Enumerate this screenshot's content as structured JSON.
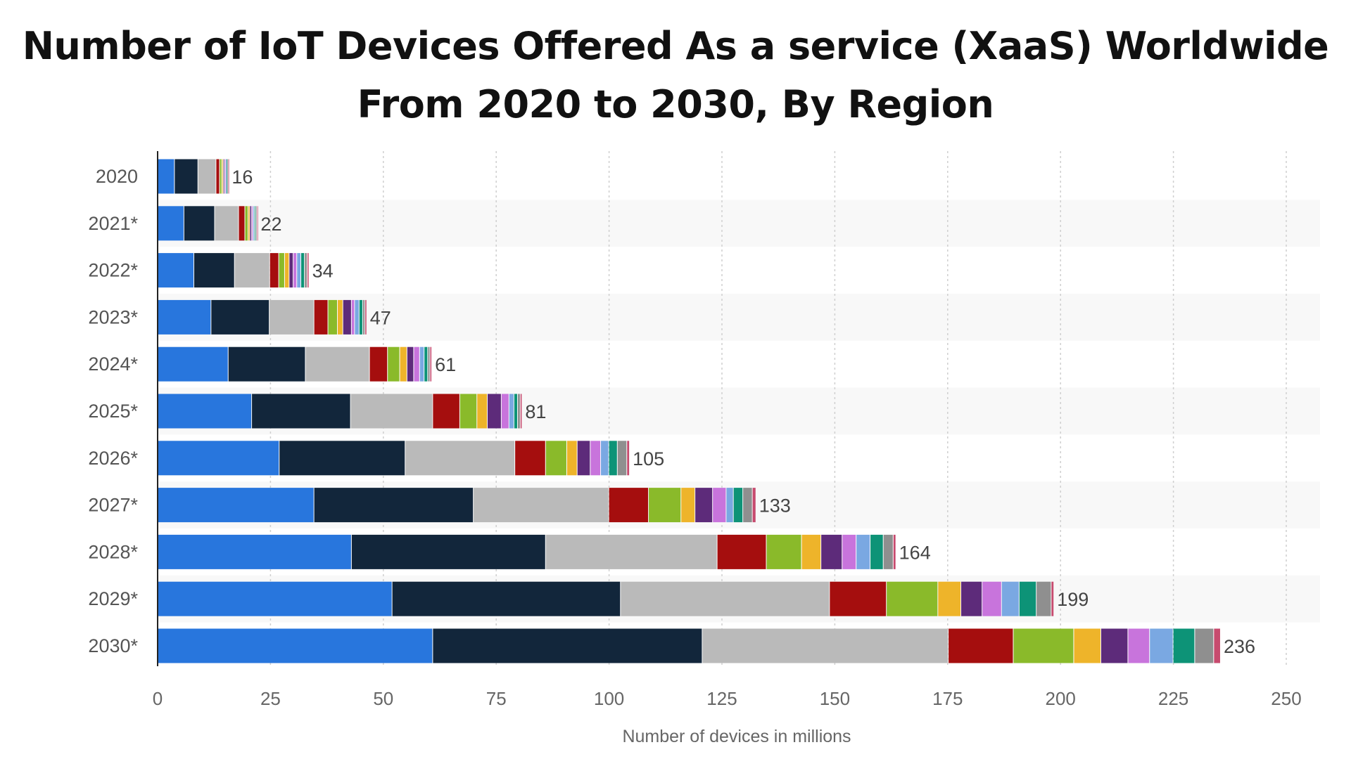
{
  "chart_data": {
    "type": "bar",
    "orientation": "horizontal",
    "stacked": true,
    "title": "Number of IoT Devices Offered As a service (XaaS) Worldwide From 2020 to 2030, By Region",
    "title_lines": [
      "Number of IoT Devices Offered As a service (XaaS) Worldwide",
      "From 2020 to 2030, By Region"
    ],
    "xlabel": "Number of devices in millions",
    "ylabel": "",
    "xlim": [
      0,
      250
    ],
    "xticks": [
      0,
      25,
      50,
      75,
      100,
      125,
      150,
      175,
      200,
      225,
      250
    ],
    "grid": true,
    "legend": "none",
    "categories": [
      "2020",
      "2021*",
      "2022*",
      "2023*",
      "2024*",
      "2025*",
      "2026*",
      "2027*",
      "2028*",
      "2029*",
      "2030*"
    ],
    "totals": [
      16,
      22,
      34,
      47,
      61,
      81,
      105,
      133,
      164,
      199,
      236
    ],
    "series": [
      {
        "color": "#2876dd",
        "values": [
          3.8,
          5.9,
          8.1,
          11.9,
          15.7,
          20.9,
          27,
          34.7,
          43,
          52,
          61
        ]
      },
      {
        "color": "#12263b",
        "values": [
          5.2,
          6.8,
          9,
          12.9,
          17.1,
          21.9,
          27.9,
          35.3,
          43,
          50.6,
          59.7
        ]
      },
      {
        "color": "#bababa",
        "values": [
          4,
          5.3,
          7.8,
          9.9,
          14.2,
          18.2,
          24.3,
          30,
          38,
          46.3,
          54.5
        ]
      },
      {
        "color": "#a50e0e",
        "values": [
          0.8,
          1.4,
          2,
          3.1,
          4,
          6,
          6.8,
          8.8,
          10.9,
          12.6,
          14.4
        ]
      },
      {
        "color": "#8aba2a",
        "values": [
          0.5,
          0.7,
          1.3,
          2.1,
          2.7,
          3.8,
          4.7,
          7.2,
          7.8,
          11.4,
          13.4
        ]
      },
      {
        "color": "#eeb42a",
        "values": [
          0.3,
          0.4,
          1,
          1.2,
          1.6,
          2.3,
          2.3,
          3.1,
          4.3,
          5.1,
          6
        ]
      },
      {
        "color": "#5d2b7a",
        "values": [
          0.3,
          0.4,
          0.9,
          1.9,
          1.5,
          3.1,
          2.9,
          3.9,
          4.7,
          4.7,
          6
        ]
      },
      {
        "color": "#c874dc",
        "values": [
          0.2,
          0.3,
          0.8,
          0.7,
          1.3,
          1.7,
          2.3,
          3,
          3.1,
          4.3,
          4.8
        ]
      },
      {
        "color": "#7aa8e2",
        "values": [
          0.2,
          0.3,
          0.9,
          1,
          1,
          1.1,
          1.8,
          1.6,
          3.1,
          3.9,
          5.2
        ]
      },
      {
        "color": "#0d9377",
        "values": [
          0.2,
          0.3,
          0.8,
          0.8,
          0.8,
          0.8,
          1.9,
          2.1,
          2.9,
          3.8,
          4.8
        ]
      },
      {
        "color": "#8f8f8f",
        "values": [
          0.2,
          0.3,
          0.6,
          0.5,
          0.5,
          0.6,
          2.1,
          2.1,
          2.2,
          3.3,
          4.2
        ]
      },
      {
        "color": "#c74a6e",
        "values": [
          0.1,
          0.1,
          0.4,
          0.4,
          0.4,
          0.4,
          0.6,
          0.8,
          0.6,
          0.6,
          1.5
        ]
      }
    ]
  }
}
